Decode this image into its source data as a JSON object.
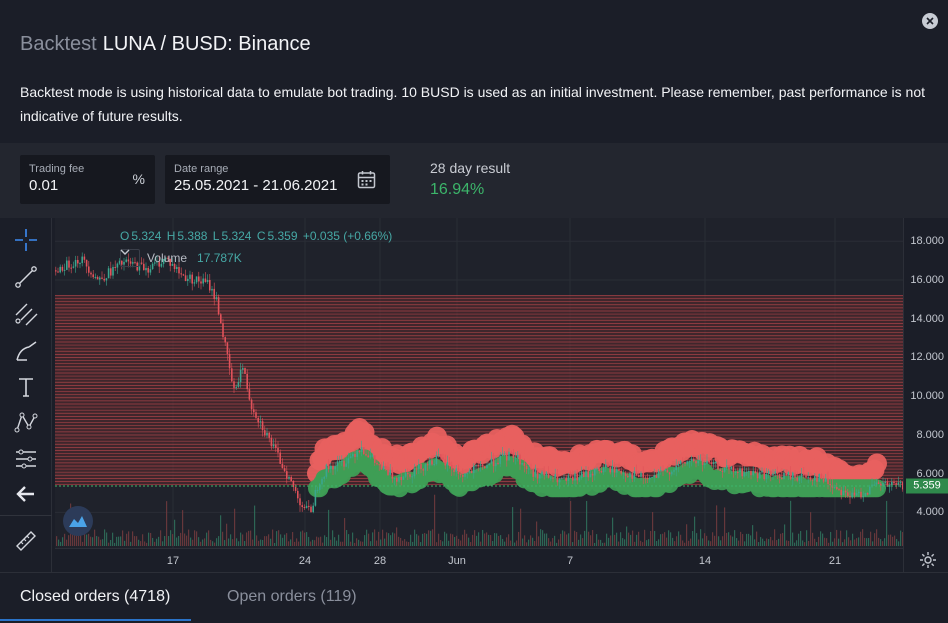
{
  "header": {
    "title_prefix": "Backtest",
    "title_main": "LUNA / BUSD: Binance",
    "description": "Backtest mode is using historical data to emulate bot trading. 10 BUSD is used as an initial investment. Please remember, past performance is not indicative of future results."
  },
  "params": {
    "fee_label": "Trading fee",
    "fee_value": "0.01",
    "fee_unit": "%",
    "range_label": "Date range",
    "range_value": "25.05.2021 - 21.06.2021",
    "result_label": "28 day result",
    "result_value": "16.94%"
  },
  "legend": {
    "o_label": "O",
    "o": "5.324",
    "h_label": "H",
    "h": "5.388",
    "l_label": "L",
    "l": "5.324",
    "c_label": "C",
    "c": "5.359",
    "change": "+0.035 (+0.66%)",
    "volume_label": "Volume",
    "volume_value": "17.787K"
  },
  "chart_data": {
    "type": "candlestick",
    "y_ticks": [
      "18.000",
      "16.000",
      "14.000",
      "12.000",
      "10.000",
      "8.000",
      "6.000",
      "4.000"
    ],
    "y_range": [
      3.4,
      19.2
    ],
    "x_ticks": [
      "17",
      "24",
      "28",
      "Jun",
      "7",
      "14",
      "21"
    ],
    "last_price": "5.359",
    "grid_band": [
      5.4,
      15.2
    ],
    "price_path": [
      [
        0.0,
        16.5
      ],
      [
        0.03,
        17.1
      ],
      [
        0.05,
        16.0
      ],
      [
        0.08,
        16.9
      ],
      [
        0.11,
        16.6
      ],
      [
        0.13,
        17.1
      ],
      [
        0.15,
        16.2
      ],
      [
        0.18,
        15.8
      ],
      [
        0.19,
        14.9
      ],
      [
        0.2,
        12.5
      ],
      [
        0.21,
        10.2
      ],
      [
        0.22,
        11.6
      ],
      [
        0.23,
        9.6
      ],
      [
        0.25,
        7.9
      ],
      [
        0.27,
        6.2
      ],
      [
        0.29,
        4.4
      ],
      [
        0.3,
        4.0
      ],
      [
        0.31,
        5.6
      ],
      [
        0.32,
        6.3
      ],
      [
        0.34,
        6.6
      ],
      [
        0.36,
        7.4
      ],
      [
        0.38,
        6.4
      ],
      [
        0.4,
        5.8
      ],
      [
        0.42,
        6.1
      ],
      [
        0.45,
        6.8
      ],
      [
        0.48,
        5.9
      ],
      [
        0.52,
        6.7
      ],
      [
        0.54,
        7.0
      ],
      [
        0.56,
        6.1
      ],
      [
        0.6,
        5.6
      ],
      [
        0.65,
        6.3
      ],
      [
        0.7,
        5.7
      ],
      [
        0.75,
        6.7
      ],
      [
        0.8,
        6.1
      ],
      [
        0.85,
        5.9
      ],
      [
        0.9,
        5.8
      ],
      [
        0.94,
        4.8
      ],
      [
        0.97,
        5.4
      ],
      [
        1.0,
        5.36
      ]
    ]
  },
  "toolbar": [
    "crosshair-tool",
    "trend-line-tool",
    "fib-tool",
    "brush-tool",
    "text-tool",
    "pattern-tool",
    "measure-tool",
    "back-tool",
    "ruler-tool"
  ],
  "tabs": {
    "closed": "Closed orders (4718)",
    "open": "Open orders (119)"
  }
}
